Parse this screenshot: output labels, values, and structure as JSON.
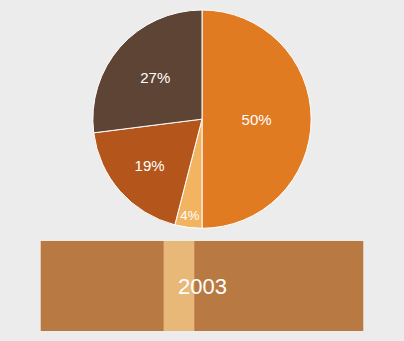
{
  "chart_data": {
    "type": "pie",
    "annotations": [
      "2003"
    ],
    "values": [
      50,
      4,
      19,
      27
    ],
    "value_labels": [
      "50%",
      "4%",
      "19%",
      "27%"
    ],
    "colors": [
      "#e07b22",
      "#f2b460",
      "#b4561c",
      "#5e4434"
    ],
    "data_labels": true
  }
}
